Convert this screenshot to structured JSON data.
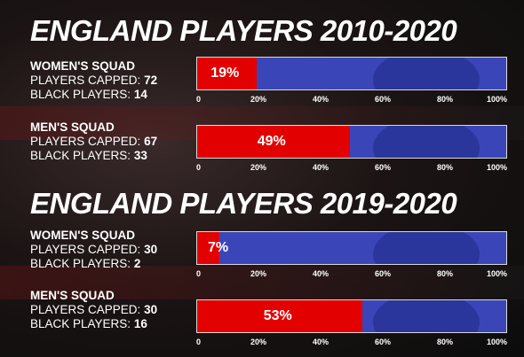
{
  "colors": {
    "women_fill": "#e30000",
    "bar_background": "#3a46b8"
  },
  "headings": [
    "ENGLAND PLAYERS 2010-2020",
    "ENGLAND PLAYERS 2019-2020"
  ],
  "squads": [
    {
      "title": "WOMEN'S SQUAD",
      "capped_label": "PLAYERS CAPPED:",
      "capped": "72",
      "black_label": "BLACK PLAYERS:",
      "black": "14",
      "pct_label": "19%"
    },
    {
      "title": "MEN'S SQUAD",
      "capped_label": "PLAYERS CAPPED:",
      "capped": "67",
      "black_label": "BLACK PLAYERS:",
      "black": "33",
      "pct_label": "49%"
    },
    {
      "title": "WOMEN'S SQUAD",
      "capped_label": "PLAYERS CAPPED:",
      "capped": "30",
      "black_label": "BLACK PLAYERS:",
      "black": "2",
      "pct_label": "7%"
    },
    {
      "title": "MEN'S SQUAD",
      "capped_label": "PLAYERS CAPPED:",
      "capped": "30",
      "black_label": "BLACK PLAYERS:",
      "black": "16",
      "pct_label": "53%"
    }
  ],
  "chart_data": {
    "type": "bar",
    "orientation": "horizontal",
    "stacked_to": 100,
    "categories": [
      "2010-2020 WOMEN'S SQUAD",
      "2010-2020 MEN'S SQUAD",
      "2019-2020 WOMEN'S SQUAD",
      "2019-2020 MEN'S SQUAD"
    ],
    "values": [
      19,
      49,
      7,
      53
    ],
    "xlim": [
      0,
      100
    ],
    "ticks": [
      "0",
      "20%",
      "40%",
      "60%",
      "80%",
      "100%"
    ],
    "grid": false
  }
}
